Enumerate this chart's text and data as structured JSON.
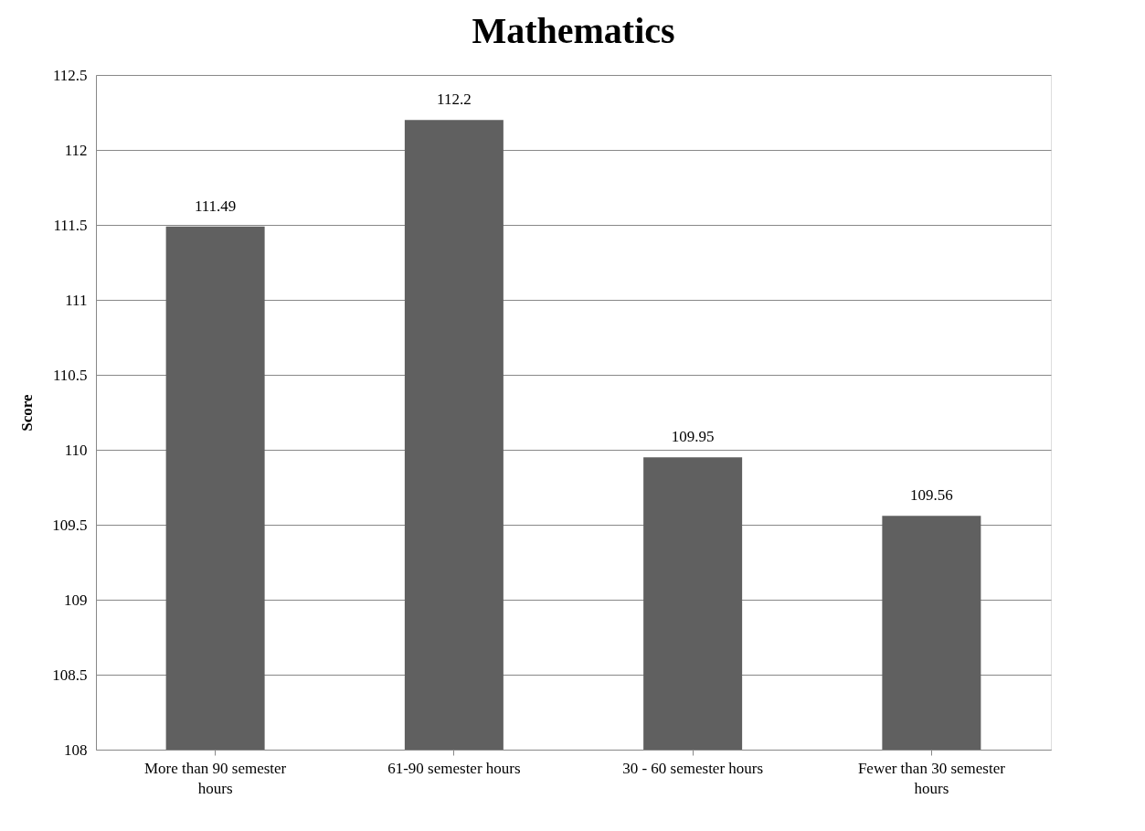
{
  "chart_data": {
    "type": "bar",
    "title": "Mathematics",
    "ylabel": "Score",
    "categories": [
      "More than 90 semester hours",
      "61-90 semester hours",
      "30 - 60 semester hours",
      "Fewer than 30 semester hours"
    ],
    "values": [
      111.49,
      112.2,
      109.95,
      109.56
    ],
    "color": "#606060",
    "ylim": [
      108,
      112.5
    ],
    "yticks": [
      108,
      108.5,
      109,
      109.5,
      110,
      110.5,
      111,
      111.5,
      112,
      112.5
    ],
    "grid": "y",
    "data_labels": true
  }
}
